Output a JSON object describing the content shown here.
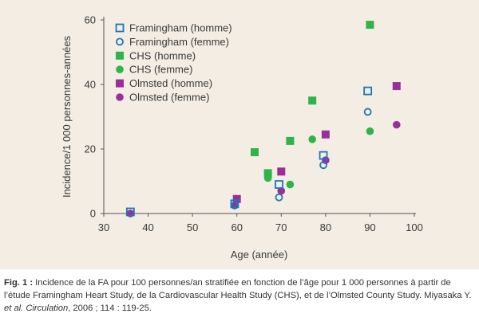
{
  "chart_data": {
    "type": "scatter",
    "ylabel": "Incidence/1 000 personnes-années",
    "xlabel": "Age (année)",
    "xlim": [
      30,
      100
    ],
    "ylim": [
      0,
      60
    ],
    "x_ticks": [
      "30",
      "40",
      "50",
      "60",
      "70",
      "80",
      "90",
      "100"
    ],
    "y_ticks": [
      "0",
      "20",
      "40",
      "60"
    ],
    "grid": false,
    "legend_position": "top-left",
    "series": [
      {
        "name": "Framingham (homme)",
        "marker": "square-open",
        "color": "#1a78b8",
        "x": [
          36,
          59.5,
          69.5,
          79.5,
          89.5
        ],
        "y": [
          0.5,
          3,
          9,
          18,
          38
        ]
      },
      {
        "name": "Framingham (femme)",
        "marker": "circle-open",
        "color": "#1a78b8",
        "x": [
          59.5,
          69.5,
          79.5,
          89.5
        ],
        "y": [
          2.5,
          5,
          15,
          31.5
        ]
      },
      {
        "name": "CHS (homme)",
        "marker": "square-filled",
        "color": "#2fb34a",
        "x": [
          64,
          67,
          72,
          77,
          90
        ],
        "y": [
          19,
          12.5,
          22.5,
          35,
          58.5
        ]
      },
      {
        "name": "CHS (femme)",
        "marker": "circle-filled",
        "color": "#2fb34a",
        "x": [
          67,
          72,
          77,
          90
        ],
        "y": [
          11,
          9,
          23,
          25.5
        ]
      },
      {
        "name": "Olmsted (homme)",
        "marker": "square-filled",
        "color": "#9a2f9a",
        "x": [
          60,
          70,
          80,
          96
        ],
        "y": [
          4.5,
          13,
          24.5,
          39.5
        ]
      },
      {
        "name": "Olmsted (femme)",
        "marker": "circle-filled",
        "color": "#9a2f9a",
        "x": [
          36,
          59.5,
          70,
          80,
          96
        ],
        "y": [
          0,
          2.5,
          7,
          16.5,
          27.5
        ]
      }
    ]
  },
  "caption": {
    "label": "Fig. 1 :",
    "text_1": " Incidence de la FA pour 100 personnes/an stratifiée en fonction de l’âge pour 1 000 personnes à partir de l’étude Framingham Heart Study, de la Cardiovascular Health Study (CHS), et de l’Olmsted County Study. Miyasaka Y. ",
    "journal": "et al. Circulation",
    "text_2": ", 2006 ; 114 : 119-25."
  }
}
